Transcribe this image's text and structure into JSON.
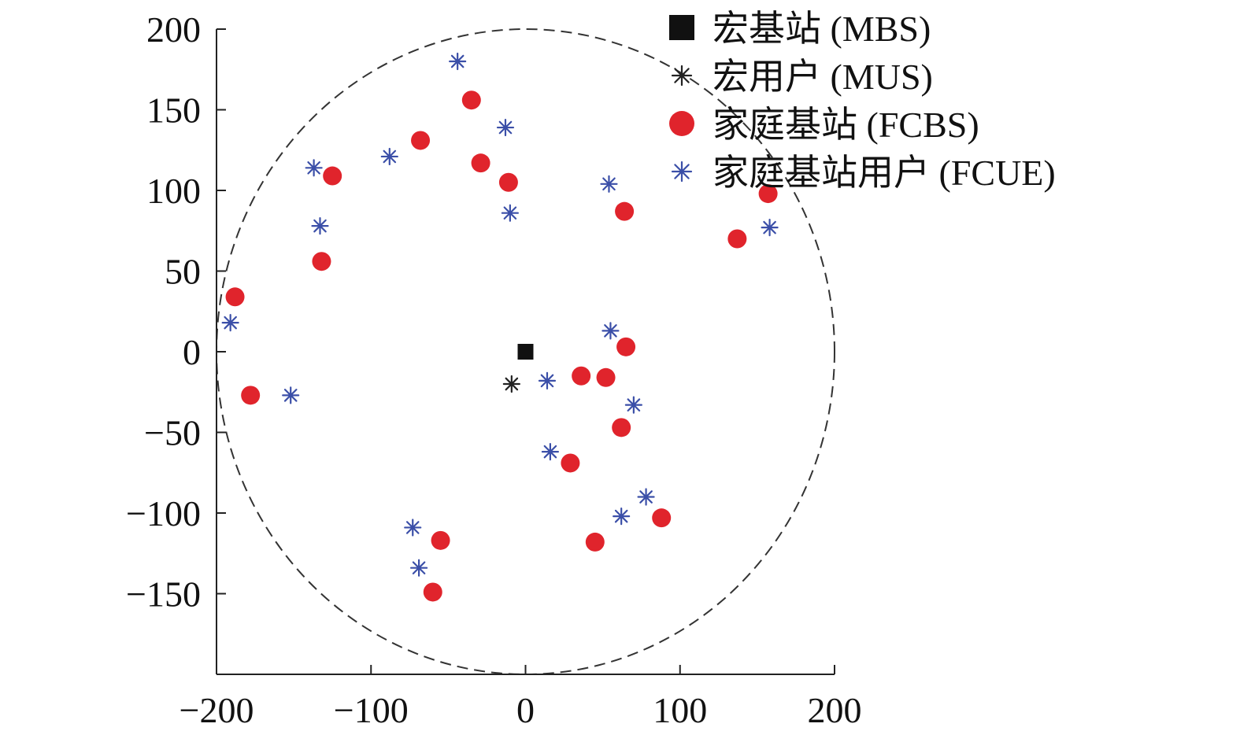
{
  "chart_data": {
    "type": "scatter",
    "title": "",
    "xlabel": "",
    "ylabel": "",
    "xlim": [
      -200,
      200
    ],
    "ylim": [
      -200,
      200
    ],
    "xticks": [
      -200,
      -100,
      0,
      100,
      200
    ],
    "yticks": [
      200,
      150,
      100,
      50,
      0,
      -50,
      -100,
      -150
    ],
    "xtick_labels": [
      "−200",
      "−100",
      "0",
      "100",
      "200"
    ],
    "ytick_labels": [
      "200",
      "150",
      "100",
      "50",
      "0",
      "−50",
      "−100",
      "−150"
    ],
    "grid": false,
    "legend_position": "top-right",
    "coverage_circle": {
      "center": [
        0,
        0
      ],
      "radius": 200,
      "style": "dashed"
    },
    "series": [
      {
        "name": "宏基站 (MBS)",
        "marker": "square",
        "color": "#111111",
        "points": [
          [
            0,
            0
          ]
        ]
      },
      {
        "name": "宏用户 (MUS)",
        "marker": "star",
        "color": "#222222",
        "points": [
          [
            -9,
            -20
          ]
        ]
      },
      {
        "name": "家庭基站 (FCBS)",
        "marker": "circle",
        "color": "#e0242c",
        "points": [
          [
            -35,
            156
          ],
          [
            -68,
            131
          ],
          [
            -29,
            117
          ],
          [
            -11,
            105
          ],
          [
            -125,
            109
          ],
          [
            -132,
            56
          ],
          [
            -188,
            34
          ],
          [
            -178,
            -27
          ],
          [
            64,
            87
          ],
          [
            137,
            70
          ],
          [
            157,
            98
          ],
          [
            65,
            3
          ],
          [
            36,
            -15
          ],
          [
            52,
            -16
          ],
          [
            62,
            -47
          ],
          [
            29,
            -69
          ],
          [
            88,
            -103
          ],
          [
            45,
            -118
          ],
          [
            -55,
            -117
          ],
          [
            -60,
            -149
          ]
        ]
      },
      {
        "name": "家庭基站用户 (FCUE)",
        "marker": "star",
        "color": "#3b4fa8",
        "points": [
          [
            -44,
            180
          ],
          [
            -13,
            139
          ],
          [
            -88,
            121
          ],
          [
            -137,
            114
          ],
          [
            -133,
            78
          ],
          [
            -10,
            86
          ],
          [
            54,
            104
          ],
          [
            158,
            77
          ],
          [
            -191,
            18
          ],
          [
            -152,
            -27
          ],
          [
            55,
            13
          ],
          [
            14,
            -18
          ],
          [
            70,
            -33
          ],
          [
            16,
            -62
          ],
          [
            78,
            -90
          ],
          [
            62,
            -102
          ],
          [
            -73,
            -109
          ],
          [
            -69,
            -134
          ]
        ]
      }
    ]
  }
}
